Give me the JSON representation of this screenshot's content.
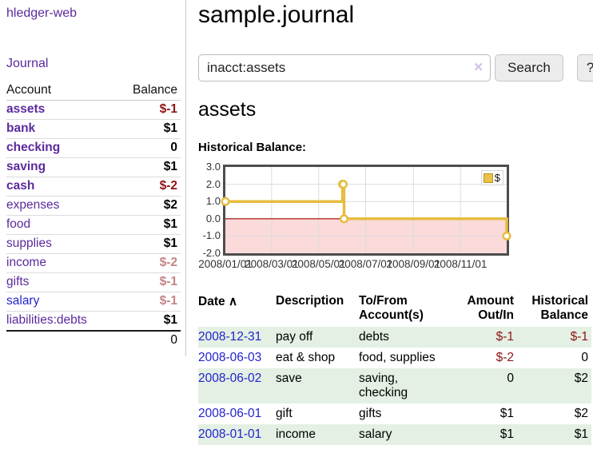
{
  "app": {
    "title": "hledger-web",
    "nav_journal": "Journal"
  },
  "colors": {
    "link_purple": "#5b2a9d",
    "link_blue": "#2323cd",
    "negative_strong": "#8d1414",
    "negative_soft": "#c38484",
    "row_stripe_green": "#e3f0e3",
    "chart_line_gold": "#e6bd42",
    "chart_negative_region": "#fbdada",
    "chart_zero_line": "#a00000"
  },
  "sidebar": {
    "header": {
      "account": "Account",
      "balance": "Balance"
    },
    "accounts": [
      {
        "name": "assets",
        "balance": "$-1"
      },
      {
        "name": "bank",
        "balance": "$1"
      },
      {
        "name": "checking",
        "balance": "0"
      },
      {
        "name": "saving",
        "balance": "$1"
      },
      {
        "name": "cash",
        "balance": "$-2"
      },
      {
        "name": "expenses",
        "balance": "$2"
      },
      {
        "name": "food",
        "balance": "$1"
      },
      {
        "name": "supplies",
        "balance": "$1"
      },
      {
        "name": "income",
        "balance": "$-2"
      },
      {
        "name": "gifts",
        "balance": "$-1"
      },
      {
        "name": "salary",
        "balance": "$-1"
      },
      {
        "name": "liabilities:debts",
        "balance": "$1"
      }
    ],
    "total": "0"
  },
  "main": {
    "title": "sample.journal",
    "search": {
      "value": "inacct:assets",
      "clear_icon": "✕",
      "button": "Search",
      "help_button": "?"
    },
    "account_heading": "assets",
    "chart_label": "Historical Balance:"
  },
  "chart_data": {
    "type": "line",
    "step": true,
    "title": "Historical Balance",
    "series": [
      {
        "name": "$",
        "points": [
          [
            "2008-01-01",
            1
          ],
          [
            "2008-06-01",
            2
          ],
          [
            "2008-06-02",
            2
          ],
          [
            "2008-06-03",
            0
          ],
          [
            "2008-12-31",
            -1
          ]
        ]
      }
    ],
    "x_ticks": [
      "2008/01/01",
      "2008/03/01",
      "2008/05/01",
      "2008/07/01",
      "2008/09/01",
      "2008/11/01"
    ],
    "y_ticks": [
      "3.0",
      "2.0",
      "1.0",
      "0.0",
      "-1.0",
      "-2.0"
    ],
    "ylim": [
      -2,
      3
    ],
    "x_range": [
      "2008-01-01",
      "2008-12-31"
    ],
    "grid": true,
    "legend": {
      "label": "$",
      "position": "top-right"
    }
  },
  "table": {
    "headers": {
      "date": "Date",
      "sort_icon": "∧",
      "description": "Description",
      "to_from": "To/From Account(s)",
      "amount": "Amount Out/In",
      "balance": "Historical Balance"
    },
    "rows": [
      {
        "date": "2008-12-31",
        "description": "pay off",
        "to_from": "debts",
        "amount": "$-1",
        "balance": "$-1"
      },
      {
        "date": "2008-06-03",
        "description": "eat & shop",
        "to_from": "food, supplies",
        "amount": "$-2",
        "balance": "0"
      },
      {
        "date": "2008-06-02",
        "description": "save",
        "to_from": "saving, checking",
        "amount": "0",
        "balance": "$2"
      },
      {
        "date": "2008-06-01",
        "description": "gift",
        "to_from": "gifts",
        "amount": "$1",
        "balance": "$2"
      },
      {
        "date": "2008-01-01",
        "description": "income",
        "to_from": "salary",
        "amount": "$1",
        "balance": "$1"
      }
    ]
  }
}
